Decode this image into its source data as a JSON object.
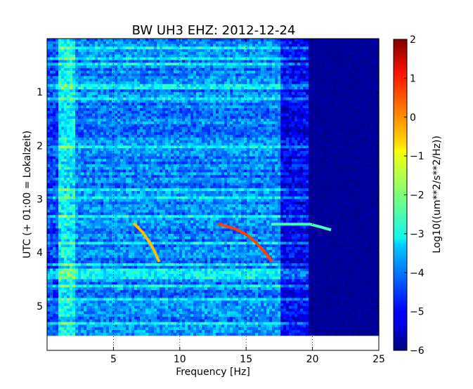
{
  "chart_data": {
    "type": "heatmap",
    "title": "BW UH3 EHZ: 2012-12-24",
    "xlabel": "Frequency [Hz]",
    "ylabel": "UTC (+ 01:00 = Lokalzeit)",
    "xlim": [
      0,
      25
    ],
    "ylim": [
      5.83,
      0
    ],
    "data_extent_y": [
      0,
      5.55
    ],
    "x_ticks": [
      5,
      10,
      15,
      20,
      25
    ],
    "x_tick_labels": [
      "5",
      "10",
      "15",
      "20",
      "25"
    ],
    "y_ticks": [
      1,
      2,
      3,
      4,
      5
    ],
    "y_tick_labels": [
      "1",
      "2",
      "3",
      "4",
      "5"
    ],
    "grid": "dotted vertical lines at x ticks",
    "colorbar": {
      "label": "Log10((um**2/s**2/Hz))",
      "range": [
        -6,
        2
      ],
      "ticks": [
        2,
        1,
        0,
        -1,
        -2,
        -3,
        -4,
        -5,
        -6
      ],
      "tick_labels": [
        "2",
        "1",
        "0",
        "−1",
        "−2",
        "−3",
        "−4",
        "−5",
        "−6"
      ],
      "colormap": "jet"
    },
    "features": [
      {
        "name": "",
        "points": [
          [
            6.6,
            3.47
          ],
          [
            7.2,
            3.62
          ],
          [
            7.7,
            3.8
          ],
          [
            8.1,
            3.98
          ],
          [
            8.4,
            4.15
          ]
        ],
        "value": -0.5
      },
      {
        "name": "",
        "points": [
          [
            13.0,
            3.47
          ],
          [
            14.2,
            3.56
          ],
          [
            15.0,
            3.66
          ],
          [
            15.7,
            3.8
          ],
          [
            16.3,
            3.96
          ],
          [
            16.9,
            4.15
          ]
        ],
        "value": 0.5
      },
      {
        "name": "",
        "points": [
          [
            17.0,
            3.47
          ],
          [
            18.5,
            3.47
          ],
          [
            19.8,
            3.47
          ],
          [
            20.6,
            3.52
          ],
          [
            21.3,
            3.57
          ]
        ],
        "value": -2.5
      }
    ],
    "background": {
      "low_freq_band_hz": [
        0.8,
        2.0
      ],
      "cutoff_hz": 17.5,
      "level_low": -3.5,
      "level_mid": -4.0,
      "level_high": -5.8
    }
  }
}
